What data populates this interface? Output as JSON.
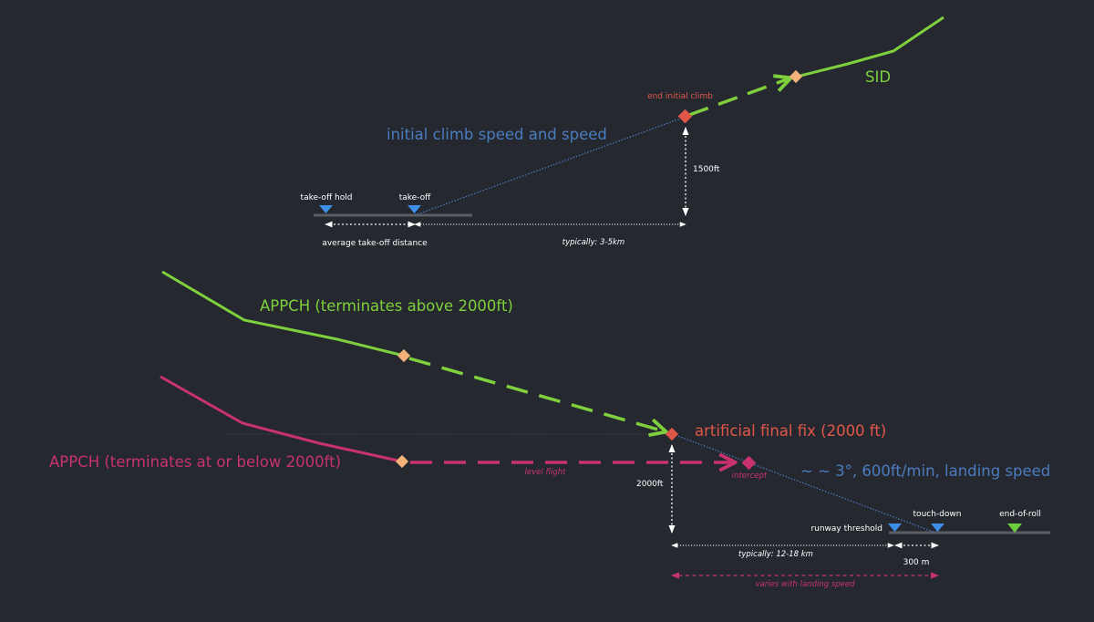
{
  "colors": {
    "background": "#262830",
    "green": "#7ed03c",
    "magenta": "#c8336e",
    "blue": "#4a7cc0",
    "red": "#e0574a",
    "orange": "#f3b27a",
    "runway": "#5b5d62",
    "marker_blue": "#3d8fe8",
    "marker_green": "#6fcf3b",
    "white": "#ffffff"
  },
  "departure": {
    "markers": {
      "takeoff_hold": "take-off hold",
      "takeoff": "take-off",
      "end_initial_climb": "end initial climb"
    },
    "labels": {
      "climb_speed": "initial climb speed and speed",
      "sid": "SID",
      "altitude": "1500ft",
      "avg_takeoff_distance": "average take-off distance",
      "typical_distance": "typically: 3-5km"
    }
  },
  "approach": {
    "labels": {
      "appch_above": "APPCH (terminates above 2000ft)",
      "appch_below": "APPCH (terminates at or below 2000ft)",
      "artificial_final_fix": "artificial final fix (2000 ft)",
      "glide_path": "~ ~ 3°, 600ft/min, landing speed",
      "level_flight": "level flight",
      "intercept": "intercept",
      "altitude": "2000ft",
      "runway_threshold": "runway threshold",
      "touchdown": "touch-down",
      "end_of_roll": "end-of-roll",
      "typical_distance": "typically: 12-18 km",
      "touchdown_distance": "300 m",
      "varies": "varies with landing speed"
    }
  }
}
